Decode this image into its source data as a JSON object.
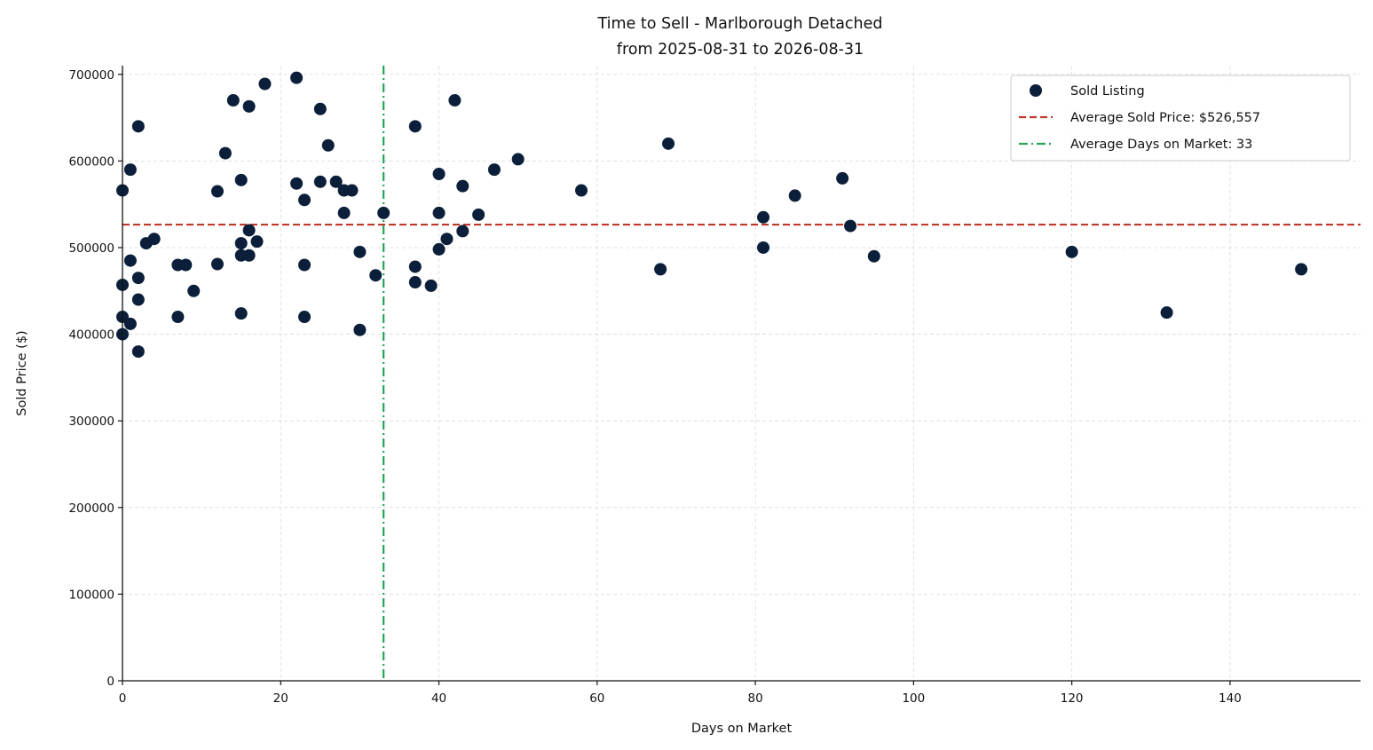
{
  "chart_data": {
    "type": "scatter",
    "title": "Time to Sell - Marlborough Detached",
    "subtitle": "from 2025-08-31 to 2026-08-31",
    "xlabel": "Days on Market",
    "ylabel": "Sold Price ($)",
    "xlim": [
      0,
      156.5
    ],
    "ylim": [
      0,
      710000
    ],
    "x_ticks": [
      0,
      20,
      40,
      60,
      80,
      100,
      120,
      140
    ],
    "y_ticks": [
      0,
      100000,
      200000,
      300000,
      400000,
      500000,
      600000,
      700000
    ],
    "grid": true,
    "legend_position": "top-right",
    "colors": {
      "points": "#0b1f3a",
      "avg_price_line": "#c0392b",
      "avg_days_line": "#27a35a",
      "grid": "#d9d9d9"
    },
    "series": [
      {
        "name": "Sold Listing",
        "points": [
          {
            "x": 0,
            "y": 566000
          },
          {
            "x": 0,
            "y": 457000
          },
          {
            "x": 0,
            "y": 420000
          },
          {
            "x": 0,
            "y": 400000
          },
          {
            "x": 1,
            "y": 590000
          },
          {
            "x": 1,
            "y": 485000
          },
          {
            "x": 1,
            "y": 412000
          },
          {
            "x": 2,
            "y": 640000
          },
          {
            "x": 2,
            "y": 465000
          },
          {
            "x": 2,
            "y": 440000
          },
          {
            "x": 2,
            "y": 380000
          },
          {
            "x": 3,
            "y": 505000
          },
          {
            "x": 4,
            "y": 510000
          },
          {
            "x": 7,
            "y": 480000
          },
          {
            "x": 7,
            "y": 420000
          },
          {
            "x": 8,
            "y": 480000
          },
          {
            "x": 9,
            "y": 450000
          },
          {
            "x": 12,
            "y": 565000
          },
          {
            "x": 12,
            "y": 481000
          },
          {
            "x": 13,
            "y": 609000
          },
          {
            "x": 14,
            "y": 670000
          },
          {
            "x": 15,
            "y": 578000
          },
          {
            "x": 15,
            "y": 505000
          },
          {
            "x": 15,
            "y": 491000
          },
          {
            "x": 15,
            "y": 424000
          },
          {
            "x": 16,
            "y": 663000
          },
          {
            "x": 16,
            "y": 520000
          },
          {
            "x": 16,
            "y": 491000
          },
          {
            "x": 17,
            "y": 507000
          },
          {
            "x": 18,
            "y": 689000
          },
          {
            "x": 22,
            "y": 696000
          },
          {
            "x": 22,
            "y": 574000
          },
          {
            "x": 23,
            "y": 555000
          },
          {
            "x": 23,
            "y": 480000
          },
          {
            "x": 23,
            "y": 420000
          },
          {
            "x": 25,
            "y": 660000
          },
          {
            "x": 25,
            "y": 576000
          },
          {
            "x": 26,
            "y": 618000
          },
          {
            "x": 27,
            "y": 576000
          },
          {
            "x": 28,
            "y": 566000
          },
          {
            "x": 28,
            "y": 540000
          },
          {
            "x": 29,
            "y": 566000
          },
          {
            "x": 30,
            "y": 495000
          },
          {
            "x": 30,
            "y": 405000
          },
          {
            "x": 32,
            "y": 468000
          },
          {
            "x": 33,
            "y": 540000
          },
          {
            "x": 37,
            "y": 640000
          },
          {
            "x": 37,
            "y": 478000
          },
          {
            "x": 37,
            "y": 460000
          },
          {
            "x": 39,
            "y": 456000
          },
          {
            "x": 40,
            "y": 585000
          },
          {
            "x": 40,
            "y": 540000
          },
          {
            "x": 40,
            "y": 498000
          },
          {
            "x": 41,
            "y": 510000
          },
          {
            "x": 42,
            "y": 670000
          },
          {
            "x": 43,
            "y": 571000
          },
          {
            "x": 43,
            "y": 519000
          },
          {
            "x": 45,
            "y": 538000
          },
          {
            "x": 47,
            "y": 590000
          },
          {
            "x": 50,
            "y": 602000
          },
          {
            "x": 58,
            "y": 566000
          },
          {
            "x": 68,
            "y": 475000
          },
          {
            "x": 69,
            "y": 620000
          },
          {
            "x": 81,
            "y": 535000
          },
          {
            "x": 81,
            "y": 500000
          },
          {
            "x": 85,
            "y": 560000
          },
          {
            "x": 91,
            "y": 580000
          },
          {
            "x": 92,
            "y": 525000
          },
          {
            "x": 95,
            "y": 490000
          },
          {
            "x": 120,
            "y": 495000
          },
          {
            "x": 132,
            "y": 425000
          },
          {
            "x": 149,
            "y": 475000
          }
        ]
      }
    ],
    "reference_lines": {
      "avg_price": {
        "value": 526557,
        "label": "Average Sold Price: $526,557"
      },
      "avg_days": {
        "value": 33,
        "label": "Average Days on Market: 33"
      }
    }
  }
}
